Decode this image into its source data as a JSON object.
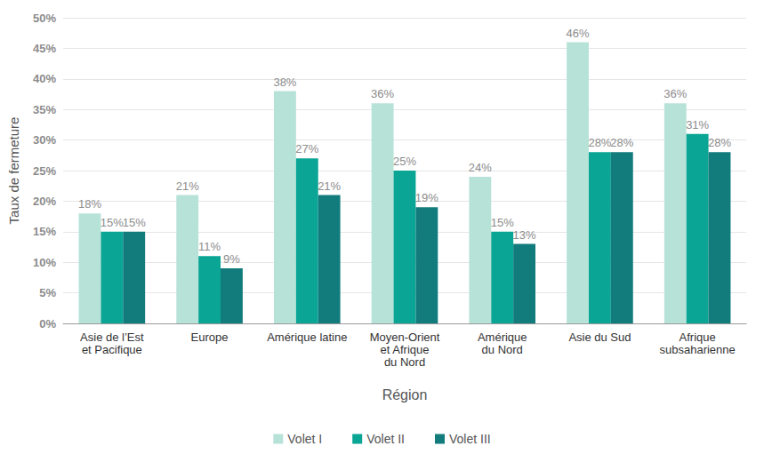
{
  "chart_data": {
    "type": "bar",
    "x_label": "Région",
    "y_label": "Taux de fermeture",
    "categories": [
      "Asie de l’Est\net Pacifique",
      "Europe",
      "Amérique latine",
      "Moyen-Orient\net Afrique\ndu Nord",
      "Amérique\ndu Nord",
      "Asie du Sud",
      "Afrique\nsubsaharienne"
    ],
    "series": [
      {
        "name": "Volet I",
        "color": "#b7e2d8",
        "values": [
          18,
          21,
          38,
          36,
          24,
          46,
          36
        ],
        "value_labels": [
          "18%",
          "21%",
          "38%",
          "36%",
          "24%",
          "46%",
          "36%"
        ]
      },
      {
        "name": "Volet II",
        "color": "#0aa595",
        "values": [
          15,
          11,
          27,
          25,
          15,
          28,
          31
        ],
        "value_labels": [
          "15%",
          "11%",
          "27%",
          "25%",
          "15%",
          "28%",
          "31%"
        ]
      },
      {
        "name": "Volet III",
        "color": "#127b7c",
        "values": [
          15,
          9,
          21,
          19,
          13,
          28,
          28
        ],
        "value_labels": [
          "15%",
          "9%",
          "21%",
          "19%",
          "13%",
          "28%",
          "28%"
        ]
      }
    ],
    "ylim": [
      0,
      50
    ],
    "yticks": [
      {
        "value": 0,
        "label": "0%"
      },
      {
        "value": 5,
        "label": "5%"
      },
      {
        "value": 10,
        "label": "10%"
      },
      {
        "value": 15,
        "label": "15%"
      },
      {
        "value": 20,
        "label": "20%"
      },
      {
        "value": 25,
        "label": "25%"
      },
      {
        "value": 30,
        "label": "30%"
      },
      {
        "value": 35,
        "label": "35%"
      },
      {
        "value": 40,
        "label": "40%"
      },
      {
        "value": 45,
        "label": "45%"
      },
      {
        "value": 50,
        "label": "50%"
      }
    ],
    "grid": true,
    "legend": "bottom",
    "data_labels": true
  }
}
